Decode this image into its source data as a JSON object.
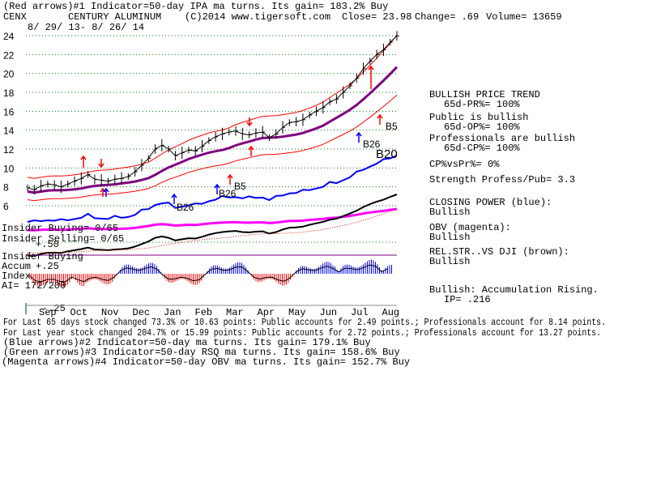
{
  "header": {
    "indicator_line": "(Red arrows)#1 Indicator=50-day IPA ma turns. Its gain= 183.2% Buy",
    "ticker": "CENX",
    "company": "CENTURY ALUMINUM",
    "copyright": "(C)2014 www.tigersoft.com",
    "close": "Close= 23.98",
    "change": "Change= .69",
    "volume": "Volume= 13659",
    "date_range": "8/ 29/ 13- 8/ 26/ 14"
  },
  "right_panel": {
    "bullish_price_trend": "BULLISH PRICE TREND",
    "pr_pct": "65d-PR%= 100%",
    "public_bullish": "Public is bullish",
    "op_pct": "65d-OP%= 100%",
    "professionals_bullish": "Professionals are bullish",
    "cp_pct": "65d-CP%= 100%",
    "cp_vs_pr": "CP%vsPr%= 0%",
    "strength": "Strength Profess/Pub= 3.3",
    "closing_power_label": "CLOSING POWER (blue):",
    "closing_power_value": "Bullish",
    "obv_label": "OBV (magenta):",
    "obv_value": "Bullish",
    "relstr_label": "REL.STR..VS DJI (brown):",
    "relstr_value": "Bullish",
    "accum_label": "Bullish: Accumulation Rising.",
    "ip": "IP= .216"
  },
  "left_labels": {
    "insider_buying": "Insider Buying= 0/65",
    "insider_selling": "Insider Selling= 0/65",
    "plus50": "+.50",
    "insider_buying2": "Insider Buying",
    "accum": "Accum",
    "plus25": "+.25",
    "index": "Index",
    "ai": "AI= 172/200",
    "minus25": "-.25"
  },
  "annotations": {
    "b26_a": "B26",
    "b26_b": "B26",
    "b26_c": "B26",
    "b5_a": "B5",
    "b5_b": "B5",
    "b20": "B20"
  },
  "footer": {
    "line1": "For Last 65 days stock changed 73.3% or 10.63 points: Public accounts for 2.49 points.; Professionals account for 8.14 points.",
    "line2": "For Last year stock changed 204.7% or 15.99 points: Public accounts for 2.72 points.; Professionals account for 13.27 points.",
    "line3": "(Blue arrows)#2 Indicator=50-day ma turns. Its gain= 179.1% Buy",
    "line4": "(Green arrows)#3 Indicator=50-day RSQ ma turns. Its gain= 158.6% Buy",
    "line5": "(Magenta arrows)#4 Indicator=50-day OBV ma turns. Its gain= 152.7% Buy"
  },
  "colors": {
    "price": "#000000",
    "band": "#ff0000",
    "ma": "#800080",
    "closing_power": "#0000ff",
    "obv": "#ff00ff",
    "grid": "#008000",
    "arrow_red": "#ff0000",
    "arrow_blue": "#0000ff",
    "accum_pos": "#0000ff",
    "accum_neg": "#ff0000"
  },
  "chart_data": {
    "type": "line",
    "ylim": [
      6,
      24
    ],
    "yticks": [
      6,
      8,
      10,
      12,
      14,
      16,
      18,
      20,
      22,
      24
    ],
    "months": [
      "Sep",
      "Oct",
      "Nov",
      "Dec",
      "Jan",
      "Feb",
      "Mar",
      "Apr",
      "May",
      "Jun",
      "Jul",
      "Aug"
    ],
    "series": [
      {
        "values": [
          7.9,
          7.7,
          8.1,
          8.3,
          8.2,
          8.0,
          8.3,
          8.6,
          8.9,
          9.3,
          8.8,
          8.7,
          8.6,
          8.8,
          8.9,
          9.1,
          9.6,
          10.3,
          11.0,
          12.0,
          12.4,
          12.0,
          11.3,
          11.6,
          11.9,
          11.8,
          12.3,
          12.9,
          13.3,
          13.6,
          13.8,
          13.9,
          13.6,
          13.5,
          13.7,
          13.8,
          13.2,
          13.6,
          14.3,
          14.8,
          14.9,
          15.1,
          15.6,
          16.0,
          16.4,
          17.0,
          17.3,
          18.0,
          18.7,
          19.5,
          20.5,
          21.3,
          22.0,
          22.5,
          23.3,
          23.98
        ]
      }
    ]
  }
}
